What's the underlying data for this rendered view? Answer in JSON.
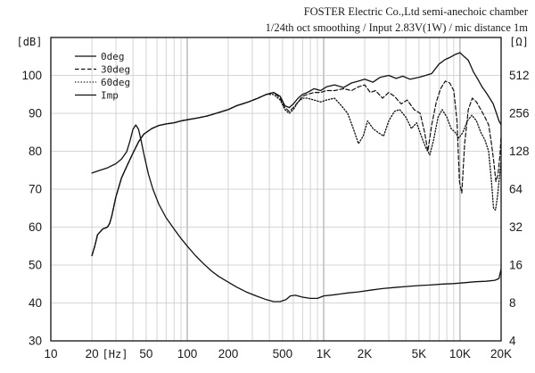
{
  "header": {
    "line1": "FOSTER Electric Co.,Ltd semi-anechoic chamber",
    "line2": "1/24th oct smoothing / Input 2.83V(1W) / mic distance 1m"
  },
  "chart_data": {
    "type": "line",
    "xlabel": "[Hz]",
    "ylabel": "[dB]",
    "y2label": "[Ω]",
    "xscale": "log",
    "xlim": [
      10,
      20000
    ],
    "xticks": [
      10,
      20,
      50,
      100,
      200,
      500,
      1000,
      2000,
      5000,
      10000,
      20000
    ],
    "xtick_labels": [
      "10",
      "20",
      "50",
      "100",
      "200",
      "500",
      "1K",
      "2K",
      "5K",
      "10K",
      "20K"
    ],
    "ylim": [
      30,
      110
    ],
    "yticks": [
      30,
      40,
      50,
      60,
      70,
      80,
      90,
      100
    ],
    "y2scale": "log2",
    "y2lim": [
      4,
      1024
    ],
    "y2ticks": [
      4,
      8,
      16,
      32,
      64,
      128,
      256,
      512
    ],
    "grid": true,
    "legend": "top-left",
    "series": [
      {
        "name": "0deg",
        "axis": "left",
        "x": [
          20,
          21,
          22,
          24,
          26,
          27,
          28,
          30,
          33,
          36,
          40,
          44,
          48,
          55,
          62,
          70,
          80,
          90,
          100,
          120,
          140,
          170,
          200,
          230,
          280,
          330,
          380,
          430,
          480,
          520,
          560,
          600,
          650,
          700,
          760,
          850,
          950,
          1050,
          1200,
          1400,
          1600,
          1800,
          2000,
          2300,
          2600,
          3000,
          3400,
          3800,
          4300,
          5000,
          5600,
          6200,
          7000,
          7800,
          8500,
          9200,
          10000,
          10700,
          11500,
          12500,
          13500,
          14500,
          15500,
          16500,
          17500,
          18500,
          19300,
          20000
        ],
        "y": [
          52.5,
          55,
          58,
          59.5,
          60,
          61,
          63,
          68,
          73,
          76,
          79.5,
          82.5,
          84.5,
          86,
          86.8,
          87.2,
          87.5,
          88,
          88.3,
          88.8,
          89.3,
          90.2,
          91,
          92,
          93,
          94,
          95,
          95.5,
          94.5,
          92,
          91.5,
          92.5,
          94,
          95,
          95.5,
          96.5,
          96,
          97,
          97.5,
          96.8,
          98,
          98.5,
          99,
          98.2,
          99.5,
          100,
          99.2,
          99.8,
          99,
          99.5,
          100,
          100.5,
          103,
          104.2,
          104.8,
          105.5,
          106,
          105,
          104,
          101,
          99,
          97,
          95.5,
          94,
          92.5,
          90,
          88,
          87
        ]
      },
      {
        "name": "30deg",
        "axis": "left",
        "x": [
          20,
          21,
          22,
          24,
          26,
          27,
          28,
          30,
          33,
          36,
          40,
          44,
          48,
          55,
          62,
          70,
          80,
          90,
          100,
          120,
          140,
          170,
          200,
          230,
          280,
          330,
          380,
          430,
          480,
          520,
          560,
          600,
          650,
          700,
          760,
          850,
          950,
          1050,
          1200,
          1400,
          1600,
          1800,
          2000,
          2200,
          2400,
          2700,
          3000,
          3300,
          3700,
          4100,
          4600,
          5100,
          5500,
          5800,
          6200,
          6700,
          7200,
          7800,
          8400,
          9000,
          9500,
          9900,
          10300,
          10800,
          11500,
          12300,
          13200,
          14200,
          15200,
          16200,
          17000,
          17700,
          18300,
          19000,
          19600,
          20000
        ],
        "y": [
          52.5,
          55,
          58,
          59.5,
          60,
          61,
          63,
          68,
          73,
          76,
          79.5,
          82.5,
          84.5,
          86,
          86.8,
          87.2,
          87.5,
          88,
          88.3,
          88.8,
          89.3,
          90.2,
          91,
          92,
          93,
          94,
          95,
          95.5,
          94,
          91.5,
          90.5,
          91.5,
          93,
          94.5,
          95,
          95.5,
          95.5,
          96,
          96,
          96.5,
          96,
          97,
          97.5,
          95.5,
          96,
          94,
          95.5,
          94.5,
          92.5,
          93.5,
          91,
          90,
          85,
          80,
          87,
          93,
          96.5,
          98.5,
          98,
          96,
          88,
          72,
          69,
          82,
          91,
          94,
          93,
          91,
          89,
          87,
          82,
          77,
          72,
          74,
          79,
          84
        ]
      },
      {
        "name": "60deg",
        "axis": "left",
        "x": [
          20,
          21,
          22,
          24,
          26,
          27,
          28,
          30,
          33,
          36,
          40,
          44,
          48,
          55,
          62,
          70,
          80,
          90,
          100,
          120,
          140,
          170,
          200,
          230,
          280,
          330,
          380,
          430,
          480,
          520,
          560,
          600,
          650,
          700,
          760,
          850,
          950,
          1050,
          1200,
          1350,
          1500,
          1650,
          1800,
          1950,
          2100,
          2300,
          2500,
          2750,
          3000,
          3300,
          3600,
          4000,
          4400,
          4800,
          5200,
          5600,
          6000,
          6400,
          6900,
          7400,
          8000,
          8600,
          9200,
          9800,
          10500,
          11300,
          12200,
          13200,
          14200,
          15200,
          16200,
          17000,
          17600,
          18200,
          18800,
          19400,
          20000
        ],
        "y": [
          52.5,
          55,
          58,
          59.5,
          60,
          61,
          63,
          68,
          73,
          76,
          79.5,
          82.5,
          84.5,
          86,
          86.8,
          87.2,
          87.5,
          88,
          88.3,
          88.8,
          89.3,
          90.2,
          91,
          92,
          93,
          94,
          95,
          95,
          93.5,
          91,
          90,
          91,
          93,
          94,
          94,
          93.5,
          93,
          93.5,
          94,
          92,
          90,
          86,
          82,
          84,
          88,
          86,
          85,
          84,
          88,
          90.5,
          91,
          89,
          86,
          87.5,
          84,
          81,
          79,
          83,
          89,
          91,
          89,
          86,
          85,
          83.5,
          85,
          88,
          89.5,
          88,
          85,
          83,
          80,
          72,
          65,
          64.5,
          68,
          73,
          77.5
        ]
      },
      {
        "name": "Imp",
        "axis": "right",
        "x": [
          20,
          23,
          26,
          30,
          33,
          36,
          38,
          40,
          42,
          44,
          46,
          48,
          52,
          56,
          62,
          70,
          80,
          90,
          100,
          115,
          130,
          150,
          170,
          200,
          230,
          270,
          320,
          380,
          430,
          480,
          530,
          570,
          620,
          700,
          800,
          900,
          1000,
          1200,
          1500,
          1800,
          2200,
          2700,
          3300,
          4000,
          5000,
          6000,
          7500,
          9000,
          11000,
          13000,
          15500,
          18000,
          19300,
          20000
        ],
        "y": [
          86,
          90.5,
          94.5,
          102,
          111,
          127,
          154,
          191,
          207,
          191,
          154,
          123,
          84,
          64,
          48.5,
          38,
          30.9,
          26,
          22.6,
          19,
          16.6,
          14.4,
          13,
          11.7,
          10.7,
          9.8,
          9.1,
          8.5,
          8.2,
          8.2,
          8.5,
          9.1,
          9.2,
          8.9,
          8.7,
          8.7,
          9.1,
          9.3,
          9.6,
          9.8,
          10.1,
          10.4,
          10.6,
          10.8,
          11,
          11.1,
          11.3,
          11.4,
          11.6,
          11.8,
          11.9,
          12.1,
          12.5,
          14.9
        ]
      }
    ]
  }
}
